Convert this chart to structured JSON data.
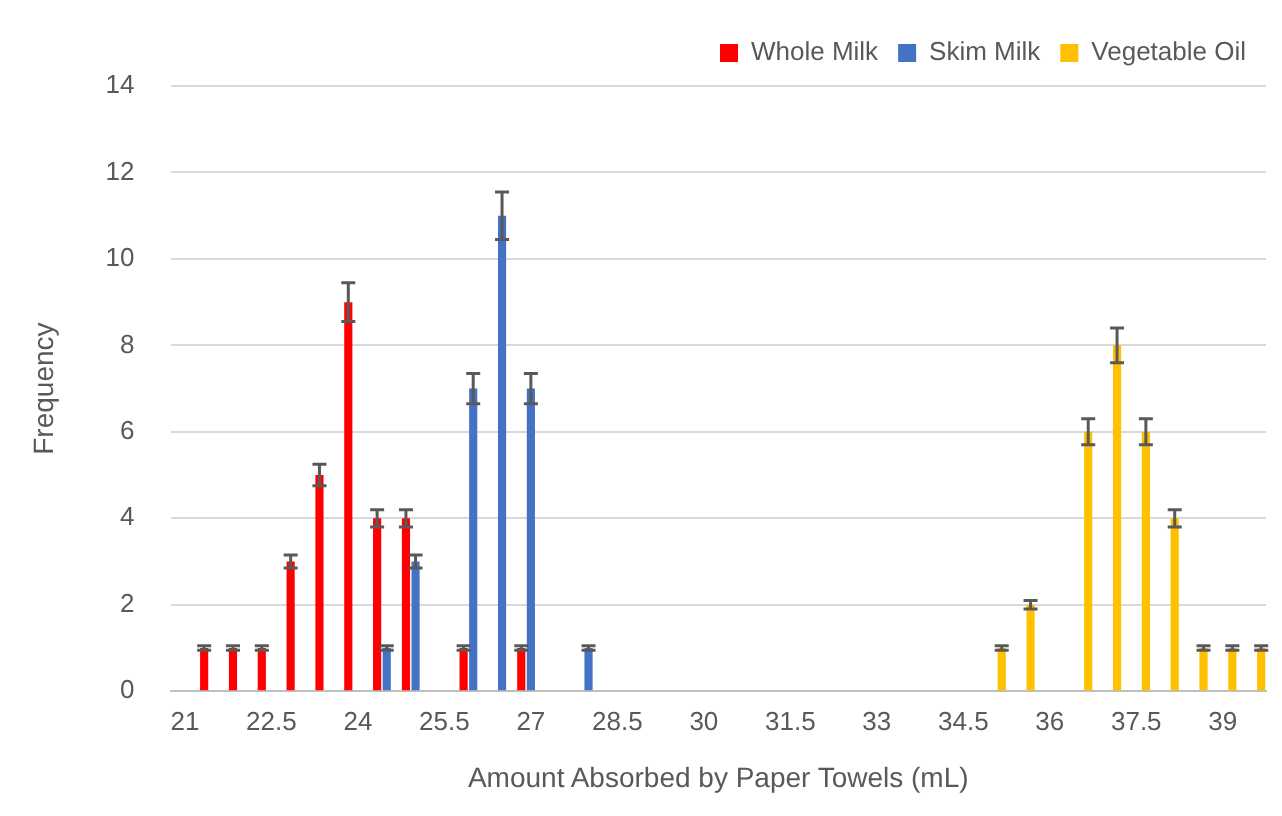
{
  "chart_data": {
    "type": "bar",
    "xlabel": "Amount Absorbed by Paper Towels (mL)",
    "ylabel": "Frequency",
    "categories": [
      "21",
      null,
      null,
      "22.5",
      null,
      null,
      "24",
      null,
      null,
      "25.5",
      null,
      null,
      "27",
      null,
      null,
      "28.5",
      null,
      null,
      "30",
      null,
      null,
      "31.5",
      null,
      null,
      "33",
      null,
      null,
      "34.5",
      null,
      null,
      "36",
      null,
      null,
      "37.5",
      null,
      null,
      "39",
      null
    ],
    "series": [
      {
        "name": "Whole Milk",
        "color": "#ff0000",
        "values": [
          null,
          1,
          1,
          1,
          3,
          5,
          9,
          4,
          4,
          null,
          1,
          null,
          1,
          null,
          null,
          null,
          null,
          null,
          null,
          null,
          null,
          null,
          null,
          null,
          null,
          null,
          null,
          null,
          null,
          null,
          null,
          null,
          null,
          null,
          null,
          null,
          null,
          null
        ],
        "errors": [
          null,
          0.05,
          0.05,
          0.05,
          0.15,
          0.25,
          0.45,
          0.2,
          0.2,
          null,
          0.05,
          null,
          0.05,
          null,
          null,
          null,
          null,
          null,
          null,
          null,
          null,
          null,
          null,
          null,
          null,
          null,
          null,
          null,
          null,
          null,
          null,
          null,
          null,
          null,
          null,
          null,
          null,
          null
        ]
      },
      {
        "name": "Skim Milk",
        "color": "#4472c4",
        "values": [
          null,
          null,
          null,
          null,
          null,
          null,
          null,
          1,
          3,
          null,
          7,
          11,
          7,
          null,
          1,
          null,
          null,
          null,
          null,
          null,
          null,
          null,
          null,
          null,
          null,
          null,
          null,
          null,
          null,
          null,
          null,
          null,
          null,
          null,
          null,
          null,
          null,
          null
        ],
        "errors": [
          null,
          null,
          null,
          null,
          null,
          null,
          null,
          0.05,
          0.15,
          null,
          0.35,
          0.55,
          0.35,
          null,
          0.05,
          null,
          null,
          null,
          null,
          null,
          null,
          null,
          null,
          null,
          null,
          null,
          null,
          null,
          null,
          null,
          null,
          null,
          null,
          null,
          null,
          null,
          null,
          null
        ]
      },
      {
        "name": "Vegetable Oil",
        "color": "#ffc000",
        "values": [
          null,
          null,
          null,
          null,
          null,
          null,
          null,
          null,
          null,
          null,
          null,
          null,
          null,
          null,
          null,
          null,
          null,
          null,
          null,
          null,
          null,
          null,
          null,
          null,
          null,
          null,
          null,
          null,
          1,
          2,
          null,
          6,
          8,
          6,
          4,
          1,
          1,
          1
        ],
        "errors": [
          null,
          null,
          null,
          null,
          null,
          null,
          null,
          null,
          null,
          null,
          null,
          null,
          null,
          null,
          null,
          null,
          null,
          null,
          null,
          null,
          null,
          null,
          null,
          null,
          null,
          null,
          null,
          null,
          0.05,
          0.1,
          null,
          0.3,
          0.4,
          0.3,
          0.2,
          0.05,
          0.05,
          0.05
        ]
      }
    ],
    "ylim": [
      0,
      14
    ],
    "yticks": [
      0,
      2,
      4,
      6,
      8,
      10,
      12,
      14
    ],
    "grid": "y",
    "legend": "top right"
  }
}
